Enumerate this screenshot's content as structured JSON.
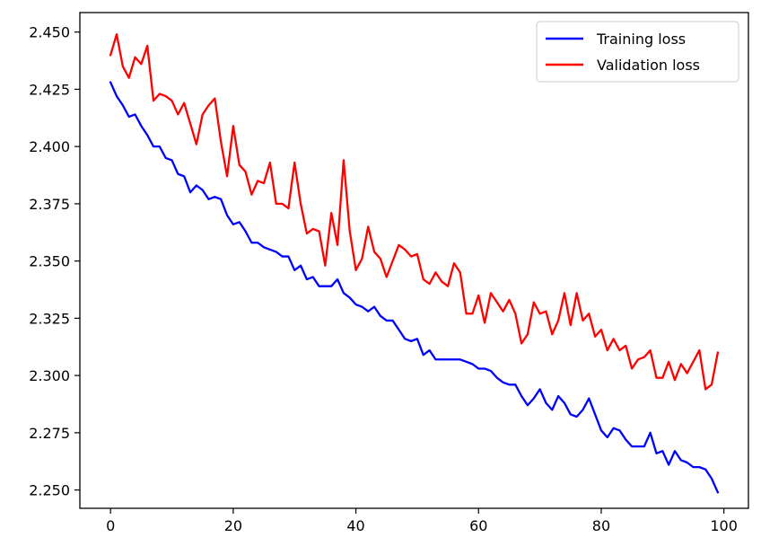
{
  "chart_data": {
    "type": "line",
    "title": "",
    "xlabel": "",
    "ylabel": "",
    "xlim": [
      -5,
      104
    ],
    "ylim": [
      2.242,
      2.4585
    ],
    "x_ticks": [
      0,
      20,
      40,
      60,
      80,
      100
    ],
    "y_ticks": [
      2.25,
      2.275,
      2.3,
      2.325,
      2.35,
      2.375,
      2.4,
      2.425,
      2.45
    ],
    "x_tick_labels": [
      "0",
      "20",
      "40",
      "60",
      "80",
      "100"
    ],
    "y_tick_labels": [
      "2.250",
      "2.275",
      "2.300",
      "2.325",
      "2.350",
      "2.375",
      "2.400",
      "2.425",
      "2.450"
    ],
    "grid": false,
    "legend_position": "top-right",
    "x": [
      0,
      1,
      2,
      3,
      4,
      5,
      6,
      7,
      8,
      9,
      10,
      11,
      12,
      13,
      14,
      15,
      16,
      17,
      18,
      19,
      20,
      21,
      22,
      23,
      24,
      25,
      26,
      27,
      28,
      29,
      30,
      31,
      32,
      33,
      34,
      35,
      36,
      37,
      38,
      39,
      40,
      41,
      42,
      43,
      44,
      45,
      46,
      47,
      48,
      49,
      50,
      51,
      52,
      53,
      54,
      55,
      56,
      57,
      58,
      59,
      60,
      61,
      62,
      63,
      64,
      65,
      66,
      67,
      68,
      69,
      70,
      71,
      72,
      73,
      74,
      75,
      76,
      77,
      78,
      79,
      80,
      81,
      82,
      83,
      84,
      85,
      86,
      87,
      88,
      89,
      90,
      91,
      92,
      93,
      94,
      95,
      96,
      97,
      98,
      99
    ],
    "series": [
      {
        "name": "Training loss",
        "color": "#0000ff",
        "values": [
          2.428,
          2.422,
          2.418,
          2.413,
          2.414,
          2.409,
          2.405,
          2.4,
          2.4,
          2.395,
          2.394,
          2.388,
          2.387,
          2.38,
          2.383,
          2.381,
          2.377,
          2.378,
          2.377,
          2.37,
          2.366,
          2.367,
          2.363,
          2.358,
          2.358,
          2.356,
          2.355,
          2.354,
          2.352,
          2.352,
          2.346,
          2.348,
          2.342,
          2.343,
          2.339,
          2.339,
          2.339,
          2.342,
          2.336,
          2.334,
          2.331,
          2.33,
          2.328,
          2.33,
          2.326,
          2.324,
          2.324,
          2.32,
          2.316,
          2.315,
          2.316,
          2.309,
          2.311,
          2.307,
          2.307,
          2.307,
          2.307,
          2.307,
          2.306,
          2.305,
          2.303,
          2.303,
          2.302,
          2.299,
          2.297,
          2.296,
          2.296,
          2.291,
          2.287,
          2.29,
          2.294,
          2.288,
          2.285,
          2.291,
          2.288,
          2.283,
          2.282,
          2.285,
          2.29,
          2.283,
          2.276,
          2.273,
          2.277,
          2.276,
          2.272,
          2.269,
          2.269,
          2.269,
          2.275,
          2.266,
          2.267,
          2.261,
          2.267,
          2.263,
          2.262,
          2.26,
          2.26,
          2.259,
          2.255,
          2.249
        ]
      },
      {
        "name": "Validation loss",
        "color": "#ff0000",
        "values": [
          2.44,
          2.449,
          2.435,
          2.43,
          2.439,
          2.436,
          2.444,
          2.42,
          2.423,
          2.422,
          2.42,
          2.414,
          2.419,
          2.41,
          2.401,
          2.414,
          2.418,
          2.421,
          2.402,
          2.387,
          2.409,
          2.392,
          2.389,
          2.379,
          2.385,
          2.384,
          2.393,
          2.375,
          2.375,
          2.373,
          2.393,
          2.375,
          2.362,
          2.364,
          2.363,
          2.348,
          2.371,
          2.357,
          2.394,
          2.363,
          2.346,
          2.351,
          2.365,
          2.354,
          2.351,
          2.343,
          2.35,
          2.357,
          2.355,
          2.352,
          2.353,
          2.342,
          2.34,
          2.345,
          2.341,
          2.339,
          2.349,
          2.345,
          2.327,
          2.327,
          2.335,
          2.323,
          2.336,
          2.332,
          2.328,
          2.333,
          2.327,
          2.314,
          2.318,
          2.332,
          2.327,
          2.328,
          2.318,
          2.324,
          2.336,
          2.322,
          2.336,
          2.324,
          2.327,
          2.317,
          2.32,
          2.311,
          2.316,
          2.311,
          2.313,
          2.303,
          2.307,
          2.308,
          2.311,
          2.299,
          2.299,
          2.306,
          2.298,
          2.305,
          2.301,
          2.306,
          2.311,
          2.294,
          2.296,
          2.31
        ]
      }
    ]
  }
}
